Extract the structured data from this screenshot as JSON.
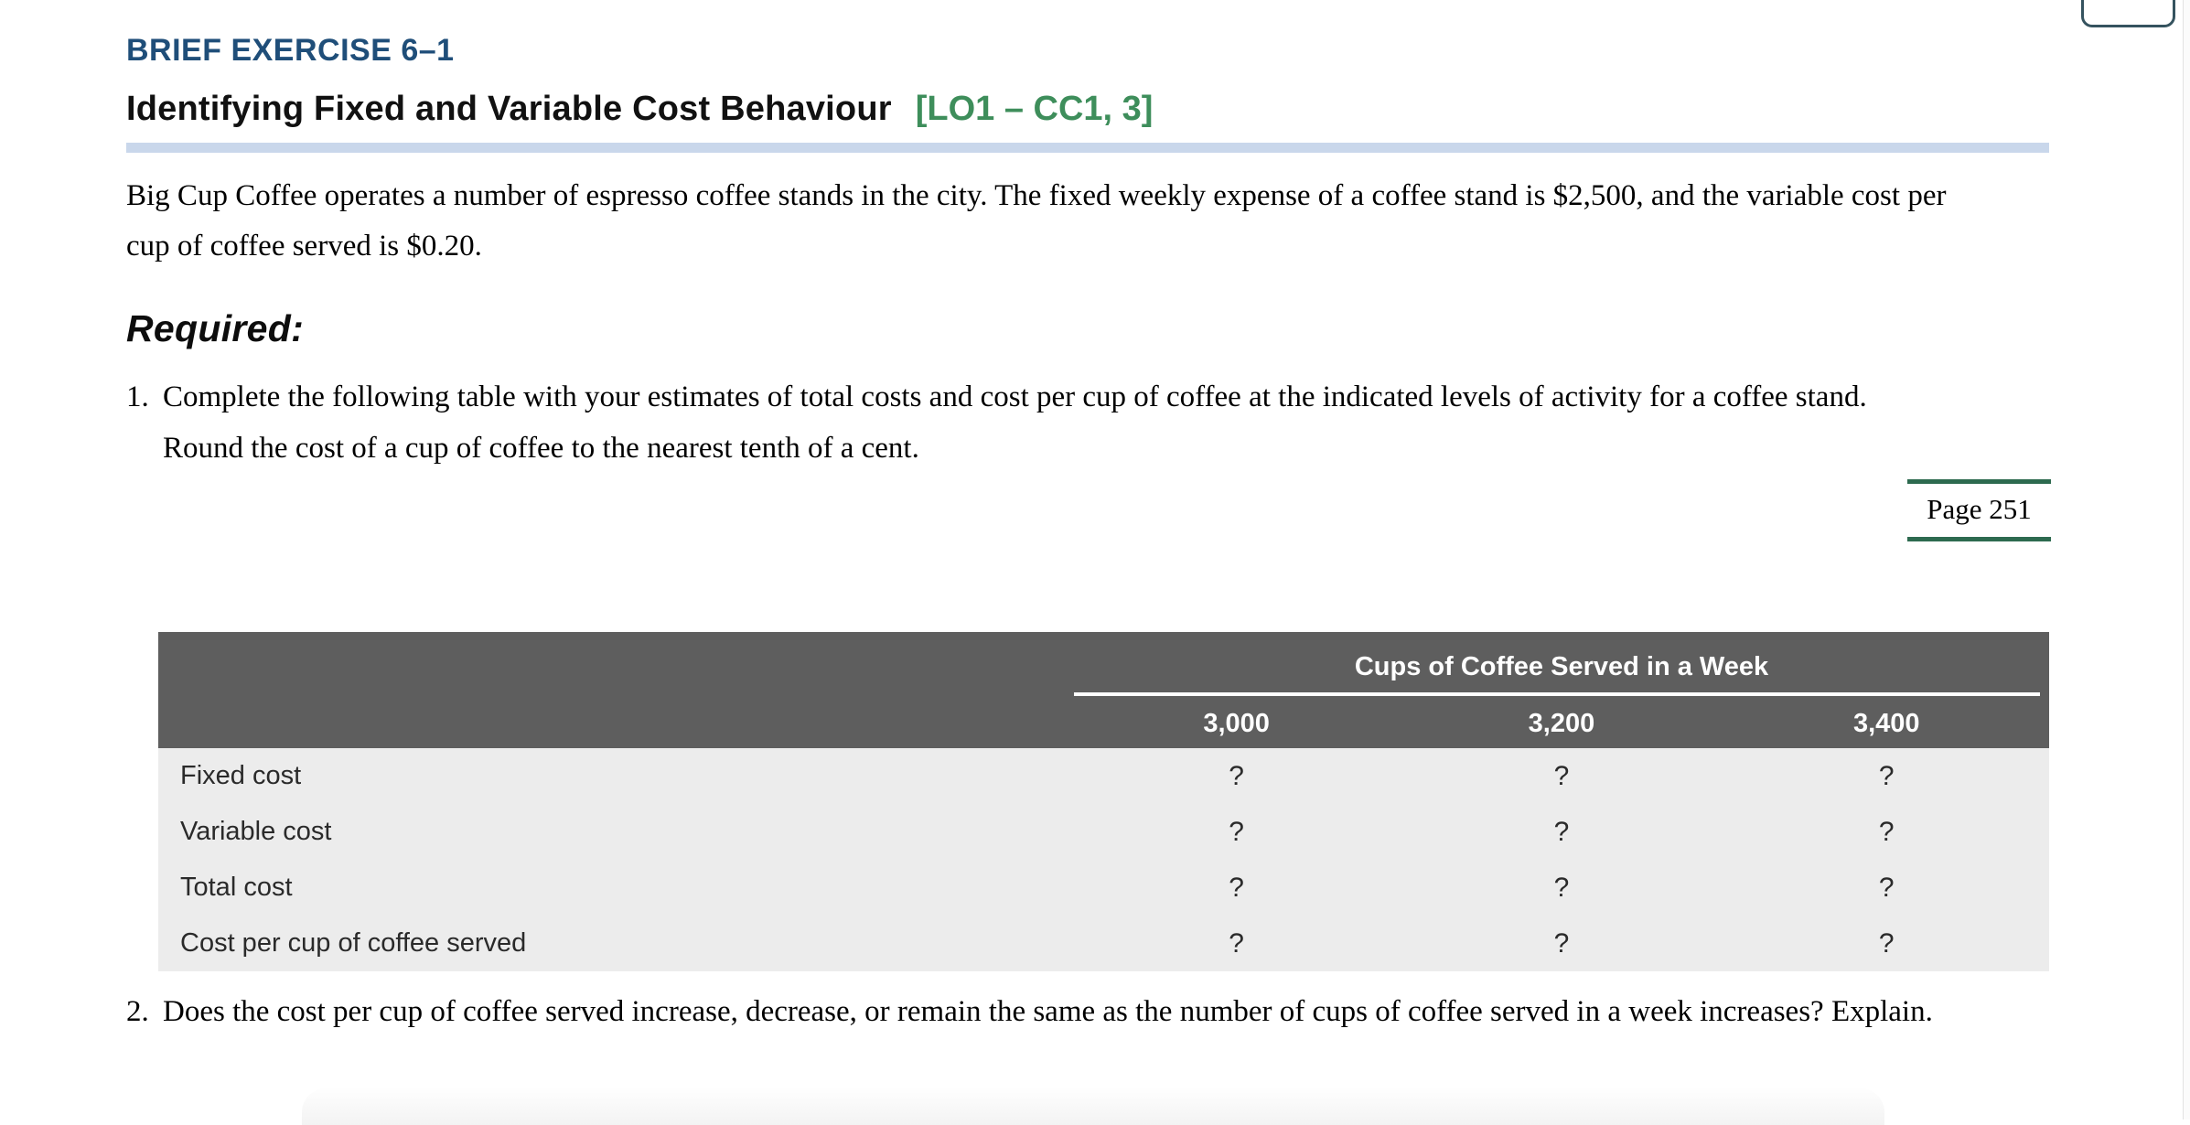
{
  "page": {
    "exercise_label": "BRIEF EXERCISE 6–1",
    "title": "Identifying Fixed and Variable Cost Behaviour",
    "lo_tag": "[LO1 – CC1, 3]",
    "intro": "Big Cup Coffee operates a number of espresso coffee stands in the city. The fixed weekly expense of a coffee stand is $2,500, and the variable cost per cup of coffee served is $0.20.",
    "required_label": "Required:",
    "items": [
      {
        "number": "1.",
        "text": "Complete the following table with your estimates of total costs and cost per cup of coffee at the indicated levels of activity for a coffee stand. Round the cost of a cup of coffee to the nearest tenth of a cent."
      },
      {
        "number": "2.",
        "text": "Does the cost per cup of coffee served increase, decrease, or remain the same as the number of cups of coffee served in a week increases? Explain."
      }
    ],
    "page_ref": "Page 251"
  },
  "table": {
    "group_header": "Cups of Coffee Served in a Week",
    "columns": [
      "3,000",
      "3,200",
      "3,400"
    ],
    "rows": [
      {
        "label": "Fixed cost",
        "values": [
          "?",
          "?",
          "?"
        ]
      },
      {
        "label": "Variable cost",
        "values": [
          "?",
          "?",
          "?"
        ]
      },
      {
        "label": "Total cost",
        "values": [
          "?",
          "?",
          "?"
        ]
      },
      {
        "label": "Cost per cup of coffee served",
        "values": [
          "?",
          "?",
          "?"
        ]
      }
    ]
  },
  "colors": {
    "heading_navy": "#1f4e79",
    "lo_green": "#3e8e5b",
    "page_ref_green": "#2d6a4f",
    "title_rule_blue": "#c9d7eb",
    "table_header_gray": "#5e5e5e",
    "table_body_gray": "#ececec"
  }
}
